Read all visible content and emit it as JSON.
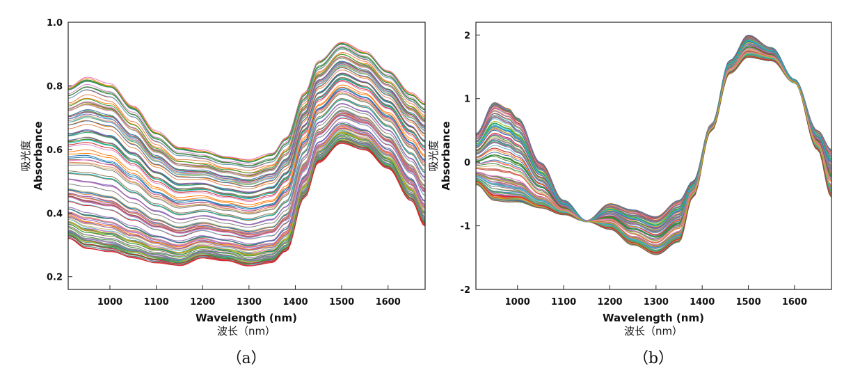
{
  "panels": [
    {
      "caption": "（a）",
      "chart_data": {
        "type": "line",
        "title": "",
        "xlabel": "Wavelength (nm)",
        "xlabel_cn": "波长（nm）",
        "ylabel": "Absorbance",
        "ylabel_cn": "吸光度",
        "xlim": [
          910,
          1680
        ],
        "ylim": [
          0.16,
          1.0
        ],
        "xticks": [
          1000,
          1100,
          1200,
          1300,
          1400,
          1500,
          1600
        ],
        "yticks": [
          0.2,
          0.4,
          0.6,
          0.8,
          1.0
        ],
        "ytick_labels": [
          "0.2",
          "0.4",
          "0.6",
          "0.8",
          "1.0"
        ],
        "legend": "none",
        "grid": false,
        "series_count": 130,
        "x": [
          910,
          950,
          1000,
          1050,
          1100,
          1150,
          1200,
          1250,
          1300,
          1350,
          1380,
          1420,
          1450,
          1500,
          1550,
          1600,
          1650,
          1680
        ],
        "profile_top": [
          0.8,
          0.83,
          0.81,
          0.74,
          0.66,
          0.61,
          0.6,
          0.58,
          0.57,
          0.59,
          0.64,
          0.78,
          0.88,
          0.94,
          0.91,
          0.85,
          0.78,
          0.75
        ],
        "profile_bottom": [
          0.32,
          0.29,
          0.28,
          0.26,
          0.245,
          0.235,
          0.26,
          0.25,
          0.235,
          0.245,
          0.28,
          0.45,
          0.56,
          0.62,
          0.6,
          0.54,
          0.44,
          0.36
        ]
      }
    },
    {
      "caption": "（b）",
      "chart_data": {
        "type": "line",
        "title": "",
        "xlabel": "Wavelength (nm)",
        "xlabel_cn": "波长（nm）",
        "ylabel": "Absorbance",
        "ylabel_cn": "吸光度",
        "xlim": [
          910,
          1680
        ],
        "ylim": [
          -2,
          2.2
        ],
        "xticks": [
          1000,
          1100,
          1200,
          1300,
          1400,
          1500,
          1600
        ],
        "yticks": [
          -2,
          -1,
          0,
          1,
          2
        ],
        "ytick_labels": [
          "-2",
          "-1",
          "0",
          "1",
          "2"
        ],
        "legend": "none",
        "grid": false,
        "series_count": 130,
        "x": [
          910,
          950,
          980,
          1000,
          1050,
          1100,
          1150,
          1200,
          1250,
          1300,
          1350,
          1380,
          1420,
          1460,
          1500,
          1550,
          1600,
          1650,
          1680
        ],
        "profile_top": [
          0.45,
          0.95,
          0.85,
          0.7,
          0.0,
          -0.6,
          -0.92,
          -0.65,
          -0.75,
          -0.85,
          -0.6,
          -0.3,
          0.6,
          1.6,
          2.0,
          1.8,
          1.3,
          0.5,
          0.2
        ],
        "profile_bottom": [
          -0.35,
          -0.6,
          -0.62,
          -0.62,
          -0.72,
          -0.82,
          -0.93,
          -1.05,
          -1.3,
          -1.45,
          -1.25,
          -0.55,
          0.5,
          1.4,
          1.65,
          1.6,
          1.25,
          0.2,
          -0.55
        ]
      }
    }
  ]
}
